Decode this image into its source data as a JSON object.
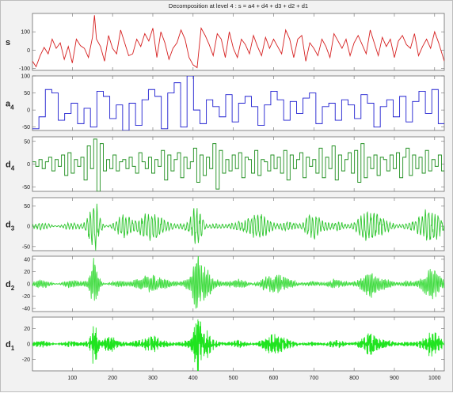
{
  "figure": {
    "title": "Decomposition at level 4 : s = a4 + d4 + d3 + d2 + d1",
    "background": "#f2f2f2",
    "axes_background": "#ffffff"
  },
  "chart_data": {
    "type": "line",
    "title": "Decomposition at level 4 : s = a4 + d4 + d3 + d2 + d1",
    "x_range": [
      1,
      1024
    ],
    "x_ticks": [
      100,
      200,
      300,
      400,
      500,
      600,
      700,
      800,
      900,
      1000
    ],
    "grid": false,
    "panels": [
      {
        "label_main": "s",
        "label_sub": "",
        "color": "#d62020",
        "ylim": [
          -110,
          200
        ],
        "yticks": [
          -100,
          0,
          100
        ],
        "kind": "signal",
        "spikes": [
          [
            155,
            190
          ],
          [
            410,
            -95
          ],
          [
            420,
            120
          ]
        ],
        "points": [
          [
            1,
            -60
          ],
          [
            10,
            -90
          ],
          [
            20,
            -30
          ],
          [
            30,
            15
          ],
          [
            40,
            -20
          ],
          [
            50,
            60
          ],
          [
            60,
            10
          ],
          [
            70,
            40
          ],
          [
            80,
            -50
          ],
          [
            90,
            20
          ],
          [
            100,
            -70
          ],
          [
            110,
            60
          ],
          [
            120,
            25
          ],
          [
            130,
            10
          ],
          [
            140,
            -40
          ],
          [
            150,
            70
          ],
          [
            155,
            190
          ],
          [
            160,
            60
          ],
          [
            170,
            20
          ],
          [
            180,
            -60
          ],
          [
            190,
            80
          ],
          [
            200,
            10
          ],
          [
            210,
            -20
          ],
          [
            220,
            110
          ],
          [
            230,
            40
          ],
          [
            240,
            -30
          ],
          [
            250,
            -20
          ],
          [
            260,
            60
          ],
          [
            270,
            20
          ],
          [
            280,
            90
          ],
          [
            290,
            50
          ],
          [
            300,
            120
          ],
          [
            310,
            -40
          ],
          [
            320,
            100
          ],
          [
            330,
            40
          ],
          [
            340,
            -50
          ],
          [
            350,
            10
          ],
          [
            360,
            40
          ],
          [
            370,
            110
          ],
          [
            380,
            60
          ],
          [
            390,
            -40
          ],
          [
            400,
            -80
          ],
          [
            410,
            -95
          ],
          [
            420,
            120
          ],
          [
            430,
            80
          ],
          [
            440,
            30
          ],
          [
            450,
            -30
          ],
          [
            460,
            90
          ],
          [
            470,
            60
          ],
          [
            480,
            -40
          ],
          [
            490,
            100
          ],
          [
            500,
            10
          ],
          [
            510,
            -40
          ],
          [
            520,
            60
          ],
          [
            530,
            30
          ],
          [
            540,
            -20
          ],
          [
            550,
            80
          ],
          [
            560,
            20
          ],
          [
            570,
            -30
          ],
          [
            580,
            70
          ],
          [
            590,
            10
          ],
          [
            600,
            60
          ],
          [
            610,
            20
          ],
          [
            620,
            -20
          ],
          [
            630,
            110
          ],
          [
            640,
            60
          ],
          [
            650,
            -40
          ],
          [
            660,
            60
          ],
          [
            670,
            80
          ],
          [
            680,
            -60
          ],
          [
            690,
            40
          ],
          [
            700,
            10
          ],
          [
            710,
            -30
          ],
          [
            720,
            60
          ],
          [
            730,
            20
          ],
          [
            740,
            -40
          ],
          [
            750,
            90
          ],
          [
            760,
            50
          ],
          [
            770,
            10
          ],
          [
            780,
            60
          ],
          [
            790,
            -30
          ],
          [
            800,
            40
          ],
          [
            810,
            80
          ],
          [
            820,
            30
          ],
          [
            830,
            -20
          ],
          [
            840,
            110
          ],
          [
            850,
            40
          ],
          [
            860,
            -30
          ],
          [
            870,
            70
          ],
          [
            880,
            20
          ],
          [
            890,
            60
          ],
          [
            900,
            -40
          ],
          [
            910,
            50
          ],
          [
            920,
            80
          ],
          [
            930,
            30
          ],
          [
            940,
            10
          ],
          [
            950,
            90
          ],
          [
            960,
            -30
          ],
          [
            970,
            20
          ],
          [
            980,
            60
          ],
          [
            990,
            10
          ],
          [
            1000,
            100
          ],
          [
            1010,
            40
          ],
          [
            1024,
            -60
          ]
        ]
      },
      {
        "label_main": "a",
        "label_sub": "4",
        "color": "#1f1fd0",
        "ylim": [
          -60,
          100
        ],
        "yticks": [
          -50,
          0,
          50,
          100
        ],
        "kind": "step",
        "step": 16,
        "levels": [
          -55,
          -20,
          60,
          50,
          -30,
          -10,
          20,
          -40,
          5,
          -50,
          55,
          40,
          -25,
          15,
          -60,
          20,
          -45,
          30,
          60,
          40,
          -55,
          50,
          80,
          -50,
          100,
          0,
          -40,
          30,
          10,
          -20,
          45,
          -35,
          20,
          40,
          10,
          -45,
          15,
          55,
          30,
          -30,
          25,
          -10,
          35,
          50,
          -40,
          10,
          20,
          -30,
          30,
          15,
          -25,
          45,
          20,
          -50,
          10,
          30,
          -20,
          40,
          -35,
          25,
          55,
          -10,
          60,
          -40
        ]
      },
      {
        "label_main": "d",
        "label_sub": "4",
        "color": "#1f8f1f",
        "ylim": [
          -60,
          60
        ],
        "yticks": [
          -50,
          0,
          50
        ],
        "kind": "step",
        "step": 8,
        "levels": [
          5,
          -5,
          10,
          -10,
          5,
          15,
          -15,
          10,
          -5,
          20,
          -25,
          25,
          -20,
          10,
          -5,
          15,
          -35,
          40,
          -10,
          55,
          -60,
          45,
          -15,
          10,
          -10,
          20,
          -15,
          5,
          10,
          -10,
          15,
          -5,
          -20,
          25,
          5,
          -10,
          15,
          -20,
          10,
          -5,
          30,
          -35,
          20,
          -15,
          10,
          25,
          -30,
          15,
          -10,
          5,
          35,
          -40,
          20,
          -25,
          15,
          -10,
          45,
          -55,
          30,
          -20,
          10,
          -15,
          20,
          -10,
          25,
          -30,
          15,
          10,
          -20,
          30,
          -25,
          10,
          5,
          -15,
          20,
          -10,
          15,
          -20,
          30,
          -35,
          20,
          -10,
          10,
          25,
          -30,
          15,
          -5,
          10,
          -20,
          35,
          -30,
          15,
          -10,
          40,
          -35,
          20,
          -15,
          10,
          25,
          -20,
          30,
          -40,
          45,
          -30,
          15,
          -10,
          20,
          -25,
          15,
          10,
          -15,
          20,
          -10,
          25,
          -30,
          15,
          35,
          -25,
          20,
          -10,
          15,
          -20,
          30,
          -15,
          10,
          -5,
          20,
          -15
        ]
      },
      {
        "label_main": "d",
        "label_sub": "3",
        "color": "#2fc62f",
        "ylim": [
          -60,
          70
        ],
        "yticks": [
          -50,
          0,
          50
        ],
        "kind": "osc",
        "period": 8,
        "base_amp": 12,
        "bursts": [
          [
            155,
            60,
            14
          ],
          [
            410,
            50,
            14
          ],
          [
            300,
            35,
            30
          ],
          [
            560,
            30,
            30
          ],
          [
            840,
            38,
            30
          ],
          [
            985,
            40,
            30
          ],
          [
            230,
            25,
            20
          ],
          [
            700,
            28,
            25
          ]
        ]
      },
      {
        "label_main": "d",
        "label_sub": "2",
        "color": "#3fdc3f",
        "ylim": [
          -45,
          45
        ],
        "yticks": [
          -40,
          -20,
          0,
          20,
          40
        ],
        "kind": "osc",
        "period": 4,
        "base_amp": 9,
        "bursts": [
          [
            155,
            40,
            10
          ],
          [
            410,
            42,
            12
          ],
          [
            430,
            25,
            20
          ],
          [
            840,
            22,
            20
          ],
          [
            990,
            20,
            25
          ],
          [
            300,
            15,
            25
          ],
          [
            600,
            15,
            25
          ]
        ]
      },
      {
        "label_main": "d",
        "label_sub": "1",
        "color": "#1fe41f",
        "ylim": [
          -35,
          35
        ],
        "yticks": [
          -20,
          0,
          20
        ],
        "kind": "osc",
        "period": 2.3,
        "base_amp": 6,
        "bursts": [
          [
            155,
            30,
            8
          ],
          [
            410,
            33,
            10
          ],
          [
            430,
            20,
            18
          ],
          [
            840,
            15,
            20
          ],
          [
            990,
            14,
            25
          ],
          [
            300,
            12,
            20
          ],
          [
            600,
            12,
            25
          ],
          [
            190,
            12,
            15
          ]
        ]
      }
    ]
  }
}
